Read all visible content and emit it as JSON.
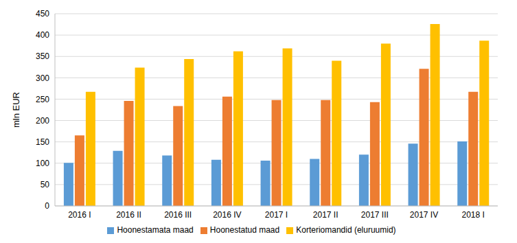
{
  "chart_data": {
    "type": "bar",
    "y_label": "mln EUR",
    "categories": [
      "2016 I",
      "2016 II",
      "2016 III",
      "2016 IV",
      "2017 I",
      "2017 II",
      "2017 III",
      "2017 IV",
      "2018 I"
    ],
    "series": [
      {
        "name": "Hoonestamata maad",
        "color": "#5b9bd5",
        "values": [
          101,
          129,
          118,
          108,
          106,
          110,
          120,
          146,
          151
        ]
      },
      {
        "name": "Hoonestatud maad",
        "color": "#ed7d31",
        "values": [
          165,
          246,
          234,
          256,
          248,
          248,
          243,
          321,
          267
        ]
      },
      {
        "name": "Korteriomandid (eluruumid)",
        "color": "#ffc000",
        "values": [
          267,
          324,
          344,
          362,
          369,
          340,
          380,
          426,
          387
        ]
      }
    ],
    "ylim": [
      0,
      450
    ],
    "yticks": [
      0,
      50,
      100,
      150,
      200,
      250,
      300,
      350,
      400,
      450
    ],
    "grid": true,
    "legend": "bottom"
  }
}
